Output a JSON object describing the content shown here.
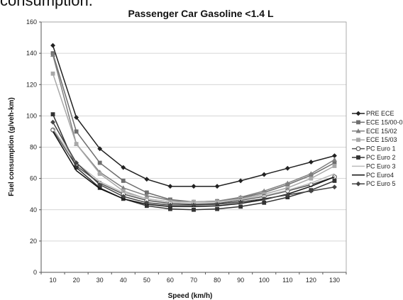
{
  "top_cut_text": "consumption.",
  "chart_data": {
    "type": "line",
    "title": "Passenger Car Gasoline <1.4 L",
    "xlabel": "Speed (km/h)",
    "ylabel": "Fuel consumption (g/veh-km)",
    "x": [
      10,
      20,
      30,
      40,
      50,
      60,
      70,
      80,
      90,
      100,
      110,
      120,
      130
    ],
    "ylim": [
      0,
      160
    ],
    "yticks": [
      0,
      20,
      40,
      60,
      80,
      100,
      120,
      140,
      160
    ],
    "grid": true,
    "legend_position": "right",
    "series": [
      {
        "name": "PRE ECE",
        "color": "#222222",
        "marker": "diamond",
        "values": [
          145,
          99,
          79,
          67,
          59.5,
          55,
          55,
          55,
          58.5,
          62.5,
          66.5,
          70.5,
          74.5
        ]
      },
      {
        "name": "ECE 15/00-0",
        "color": "#6e6e6e",
        "marker": "square",
        "values": [
          140,
          90,
          70,
          58.5,
          51,
          46.5,
          45,
          45.5,
          47.5,
          51,
          56,
          62,
          70
        ]
      },
      {
        "name": "ECE 15/02",
        "color": "#808080",
        "marker": "triangle",
        "values": [
          139,
          82,
          64,
          54,
          49,
          46,
          45,
          45.5,
          48,
          52,
          57,
          63,
          72
        ]
      },
      {
        "name": "ECE 15/03",
        "color": "#a8a8a8",
        "marker": "square",
        "values": [
          127,
          82,
          63,
          52,
          47,
          45,
          45,
          45,
          47,
          50,
          54,
          60,
          68
        ]
      },
      {
        "name": "PC Euro 1",
        "color": "#555555",
        "marker": "circle",
        "values": [
          91,
          68,
          57,
          50,
          46,
          44,
          43.5,
          44,
          46,
          48.5,
          52,
          56,
          61
        ]
      },
      {
        "name": "PC Euro 2",
        "color": "#333333",
        "marker": "square",
        "values": [
          101,
          67,
          54,
          47,
          42.5,
          40.5,
          40,
          40.5,
          42,
          44.5,
          48,
          52.5,
          58.5
        ]
      },
      {
        "name": "PC Euro 3",
        "color": "#bbbbbb",
        "marker": "none",
        "values": [
          92,
          70,
          58,
          51,
          47,
          45,
          44.5,
          45,
          46.5,
          49,
          52.5,
          57,
          63
        ]
      },
      {
        "name": "PC Euro4",
        "color": "#111111",
        "marker": "none",
        "values": [
          90,
          65,
          53.5,
          47,
          43.5,
          42,
          42,
          42.5,
          44,
          46.5,
          50,
          55,
          61
        ]
      },
      {
        "name": "PC Euro 5",
        "color": "#444444",
        "marker": "diamond",
        "values": [
          96,
          70,
          56,
          48.5,
          44.5,
          43,
          43,
          43.5,
          45,
          47,
          49.5,
          52,
          54.5
        ]
      }
    ]
  }
}
